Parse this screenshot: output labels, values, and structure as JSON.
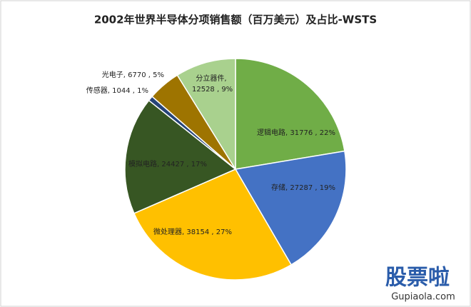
{
  "chart_data": {
    "type": "pie",
    "title": "2002年世界半导体分项销售额（百万美元）及占比-WSTS",
    "values": [
      31776,
      27287,
      38154,
      24427,
      1044,
      6770,
      12528
    ],
    "value_labels": [
      "逻辑电路, 31776 , 22%",
      "存储, 27287 , 19%",
      "微处理器, 38154 , 27%",
      "模拟电路, 24427 , 17%",
      "传感器, 1044 , 1%",
      "光电子, 6770 , 5%",
      "分立器件, 12528 , 9%"
    ],
    "colors": [
      "#70ad47",
      "#4472c4",
      "#ffc000",
      "#375623",
      "#264478",
      "#9e7400",
      "#a9d18e"
    ]
  },
  "watermark": {
    "brand": "股票啦",
    "url": "Gupiaola.com"
  }
}
